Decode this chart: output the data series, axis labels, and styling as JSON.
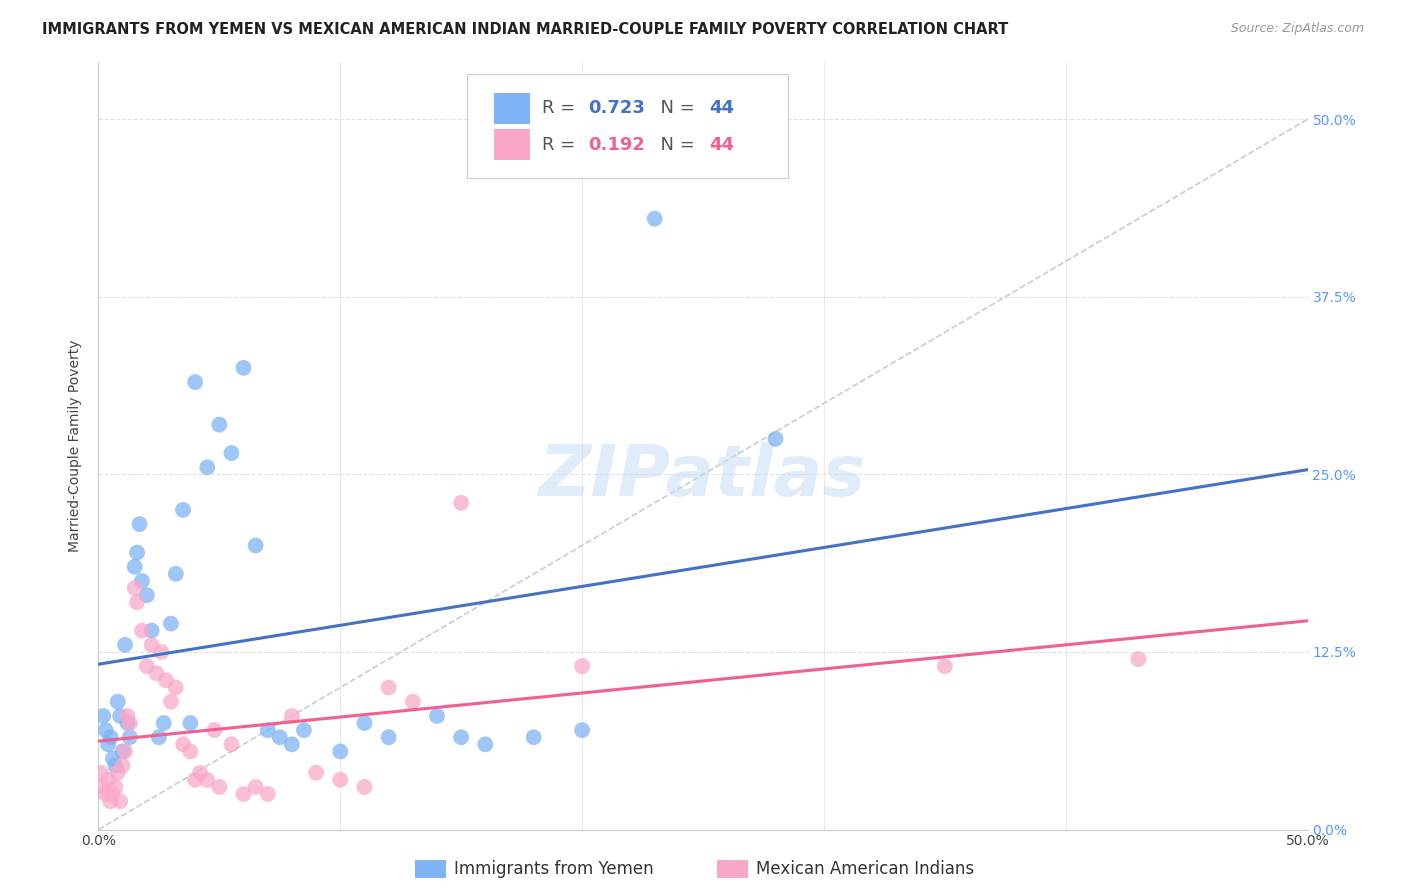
{
  "title": "IMMIGRANTS FROM YEMEN VS MEXICAN AMERICAN INDIAN MARRIED-COUPLE FAMILY POVERTY CORRELATION CHART",
  "source": "Source: ZipAtlas.com",
  "ylabel": "Married-Couple Family Poverty",
  "ytick_labels": [
    "0.0%",
    "12.5%",
    "25.0%",
    "37.5%",
    "50.0%"
  ],
  "ytick_values": [
    0.0,
    0.125,
    0.25,
    0.375,
    0.5
  ],
  "xlim": [
    0.0,
    0.5
  ],
  "ylim": [
    0.0,
    0.54
  ],
  "R_blue": 0.723,
  "N_blue": 44,
  "R_pink": 0.192,
  "N_pink": 44,
  "legend_label_blue": "Immigrants from Yemen",
  "legend_label_pink": "Mexican American Indians",
  "watermark": "ZIPatlas",
  "blue_color": "#7EB3F5",
  "pink_color": "#F9A8C9",
  "blue_line_color": "#4472C4",
  "pink_line_color": "#F06090",
  "blue_scatter": [
    [
      0.002,
      0.08
    ],
    [
      0.003,
      0.07
    ],
    [
      0.004,
      0.06
    ],
    [
      0.005,
      0.065
    ],
    [
      0.006,
      0.05
    ],
    [
      0.007,
      0.045
    ],
    [
      0.008,
      0.09
    ],
    [
      0.009,
      0.08
    ],
    [
      0.01,
      0.055
    ],
    [
      0.011,
      0.13
    ],
    [
      0.012,
      0.075
    ],
    [
      0.013,
      0.065
    ],
    [
      0.015,
      0.185
    ],
    [
      0.016,
      0.195
    ],
    [
      0.017,
      0.215
    ],
    [
      0.018,
      0.175
    ],
    [
      0.02,
      0.165
    ],
    [
      0.022,
      0.14
    ],
    [
      0.025,
      0.065
    ],
    [
      0.027,
      0.075
    ],
    [
      0.03,
      0.145
    ],
    [
      0.032,
      0.18
    ],
    [
      0.035,
      0.225
    ],
    [
      0.038,
      0.075
    ],
    [
      0.04,
      0.315
    ],
    [
      0.045,
      0.255
    ],
    [
      0.05,
      0.285
    ],
    [
      0.055,
      0.265
    ],
    [
      0.06,
      0.325
    ],
    [
      0.065,
      0.2
    ],
    [
      0.07,
      0.07
    ],
    [
      0.075,
      0.065
    ],
    [
      0.08,
      0.06
    ],
    [
      0.085,
      0.07
    ],
    [
      0.1,
      0.055
    ],
    [
      0.11,
      0.075
    ],
    [
      0.12,
      0.065
    ],
    [
      0.14,
      0.08
    ],
    [
      0.15,
      0.065
    ],
    [
      0.16,
      0.06
    ],
    [
      0.18,
      0.065
    ],
    [
      0.2,
      0.07
    ],
    [
      0.23,
      0.43
    ],
    [
      0.28,
      0.275
    ]
  ],
  "pink_scatter": [
    [
      0.001,
      0.04
    ],
    [
      0.002,
      0.03
    ],
    [
      0.003,
      0.025
    ],
    [
      0.004,
      0.035
    ],
    [
      0.005,
      0.02
    ],
    [
      0.006,
      0.025
    ],
    [
      0.007,
      0.03
    ],
    [
      0.008,
      0.04
    ],
    [
      0.009,
      0.02
    ],
    [
      0.01,
      0.045
    ],
    [
      0.011,
      0.055
    ],
    [
      0.012,
      0.08
    ],
    [
      0.013,
      0.075
    ],
    [
      0.015,
      0.17
    ],
    [
      0.016,
      0.16
    ],
    [
      0.018,
      0.14
    ],
    [
      0.02,
      0.115
    ],
    [
      0.022,
      0.13
    ],
    [
      0.024,
      0.11
    ],
    [
      0.026,
      0.125
    ],
    [
      0.028,
      0.105
    ],
    [
      0.03,
      0.09
    ],
    [
      0.032,
      0.1
    ],
    [
      0.035,
      0.06
    ],
    [
      0.038,
      0.055
    ],
    [
      0.04,
      0.035
    ],
    [
      0.042,
      0.04
    ],
    [
      0.045,
      0.035
    ],
    [
      0.048,
      0.07
    ],
    [
      0.05,
      0.03
    ],
    [
      0.055,
      0.06
    ],
    [
      0.06,
      0.025
    ],
    [
      0.065,
      0.03
    ],
    [
      0.07,
      0.025
    ],
    [
      0.08,
      0.08
    ],
    [
      0.09,
      0.04
    ],
    [
      0.1,
      0.035
    ],
    [
      0.11,
      0.03
    ],
    [
      0.12,
      0.1
    ],
    [
      0.13,
      0.09
    ],
    [
      0.15,
      0.23
    ],
    [
      0.2,
      0.115
    ],
    [
      0.35,
      0.115
    ],
    [
      0.43,
      0.12
    ]
  ],
  "diag_line_color": "#cccccc",
  "background_color": "#ffffff",
  "grid_color": "#e0e0e0",
  "title_fontsize": 10.5,
  "source_fontsize": 9,
  "axis_fontsize": 10,
  "tick_fontsize": 10,
  "legend_fontsize": 13,
  "watermark_fontsize": 52,
  "watermark_color": "#ddeeff",
  "watermark_alpha": 0.6
}
